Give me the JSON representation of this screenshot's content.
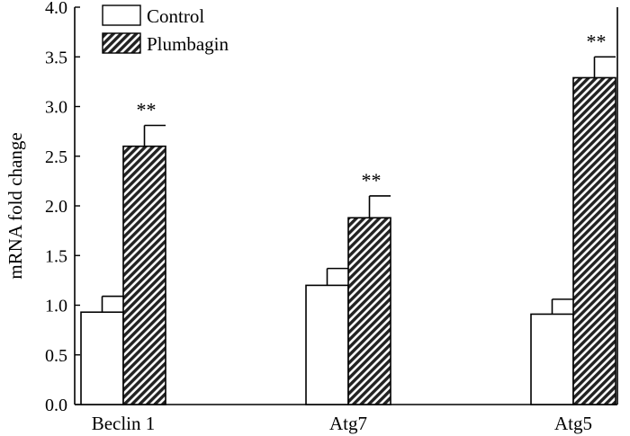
{
  "chart_data": {
    "type": "bar",
    "title": "",
    "xlabel": "",
    "ylabel": "mRNA fold change",
    "ylim": [
      0,
      4.0
    ],
    "yticks": [
      0.0,
      0.5,
      1.0,
      1.5,
      2.0,
      2.5,
      3.0,
      3.5,
      4.0
    ],
    "ytick_labels": [
      "0.0",
      "0.5",
      "1.0",
      "1.5",
      "2.0",
      "2.5",
      "3.0",
      "3.5",
      "4.0"
    ],
    "categories": [
      "Beclin 1",
      "Atg7",
      "Atg5"
    ],
    "series": [
      {
        "name": "Control",
        "fill": "white",
        "values": [
          0.93,
          1.2,
          0.91
        ],
        "errors": [
          0.16,
          0.17,
          0.15
        ],
        "annotations": [
          "",
          "",
          ""
        ]
      },
      {
        "name": "Plumbagin",
        "fill": "hatched",
        "values": [
          2.6,
          1.88,
          3.29
        ],
        "errors": [
          0.21,
          0.22,
          0.21
        ],
        "annotations": [
          "**",
          "**",
          "**"
        ]
      }
    ],
    "legend_position": "top-left",
    "grid": false
  },
  "colors": {
    "axis": "#000000",
    "bar_fill_control": "#ffffff",
    "hatch_line": "#222222",
    "hatch_bg": "#ffffff"
  }
}
